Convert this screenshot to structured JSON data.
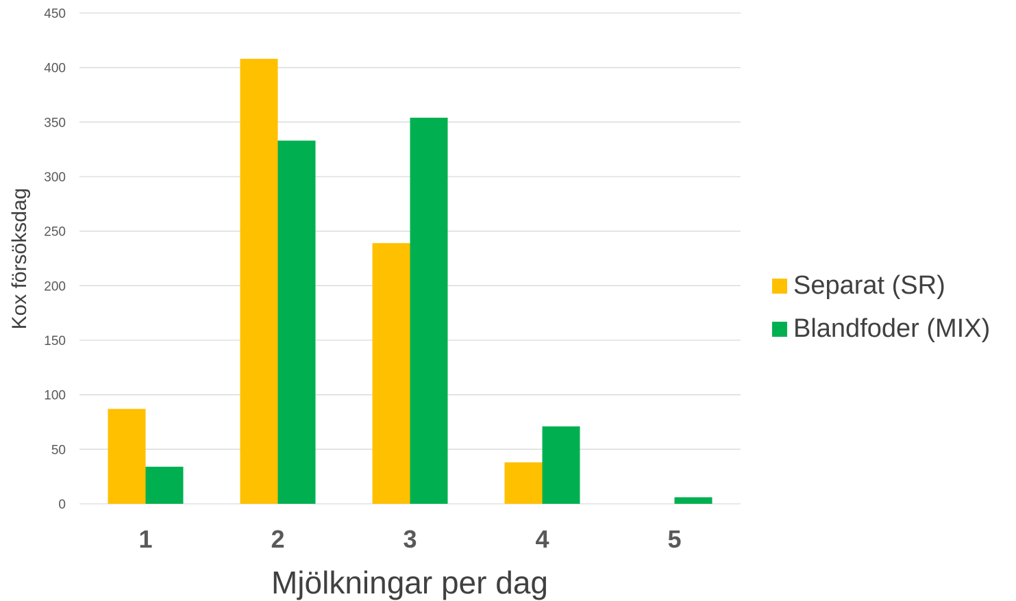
{
  "chart_data": {
    "type": "bar",
    "title": "",
    "xlabel": "Mjölkningar per dag",
    "ylabel": "Kox försöksdag",
    "categories": [
      "1",
      "2",
      "3",
      "4",
      "5"
    ],
    "ylim": [
      0,
      450
    ],
    "yticks": [
      0,
      50,
      100,
      150,
      200,
      250,
      300,
      350,
      400,
      450
    ],
    "grid": true,
    "legend_position": "right",
    "series": [
      {
        "name": "Separat (SR)",
        "color": "#FFC000",
        "values": [
          87,
          408,
          239,
          38,
          0
        ]
      },
      {
        "name": "Blandfoder (MIX)",
        "color": "#00B050",
        "values": [
          34,
          333,
          354,
          71,
          6
        ]
      }
    ]
  }
}
